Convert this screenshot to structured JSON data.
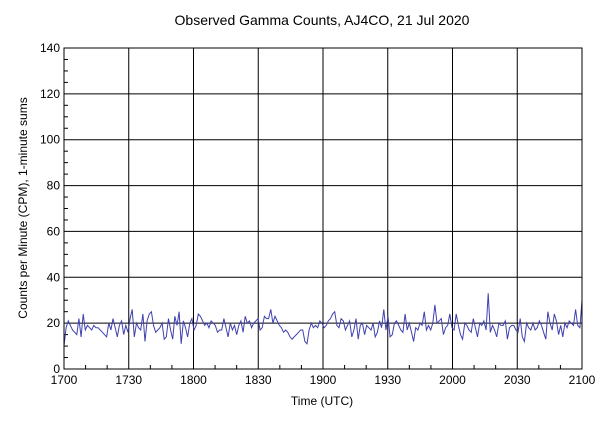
{
  "chart_data": {
    "type": "line",
    "title": "Observed Gamma Counts, AJ4CO, 21 Jul 2020",
    "xlabel": "Time (UTC)",
    "ylabel": "Counts per Minute (CPM), 1-minute sums",
    "xlim_minutes": [
      0,
      240
    ],
    "ylim": [
      0,
      140
    ],
    "x_ticks": [
      "1700",
      "1730",
      "1800",
      "1830",
      "1900",
      "1930",
      "2000",
      "2030",
      "2100"
    ],
    "y_ticks": [
      "0",
      "20",
      "40",
      "60",
      "80",
      "100",
      "120",
      "140"
    ],
    "grid": true,
    "line_color": "#4040b0",
    "series": [
      {
        "name": "CPM",
        "values": [
          10,
          18,
          21,
          19,
          17,
          16,
          15,
          22,
          14,
          24,
          17,
          19,
          18,
          17,
          19,
          18,
          18,
          17,
          16,
          15,
          14,
          20,
          17,
          22,
          18,
          14,
          19,
          21,
          15,
          19,
          16,
          22,
          26,
          14,
          20,
          18,
          17,
          24,
          12,
          21,
          24,
          25,
          19,
          16,
          17,
          18,
          20,
          13,
          14,
          22,
          17,
          13,
          23,
          19,
          25,
          11,
          21,
          18,
          14,
          20,
          22,
          17,
          19,
          24,
          23,
          21,
          19,
          20,
          18,
          21,
          20,
          19,
          16,
          17,
          17,
          22,
          18,
          14,
          20,
          17,
          19,
          15,
          19,
          21,
          16,
          23,
          20,
          21,
          18,
          20,
          21,
          22,
          17,
          18,
          23,
          22,
          22,
          26,
          20,
          23,
          21,
          19,
          18,
          16,
          17,
          16,
          14,
          13,
          14,
          15,
          16,
          17,
          17,
          12,
          11,
          17,
          20,
          18,
          19,
          18,
          21,
          20,
          18,
          19,
          21,
          22,
          24,
          25,
          19,
          18,
          22,
          21,
          17,
          19,
          21,
          14,
          17,
          22,
          13,
          19,
          20,
          15,
          19,
          18,
          17,
          20,
          14,
          16,
          21,
          18,
          26,
          17,
          23,
          14,
          15,
          20,
          21,
          19,
          17,
          16,
          24,
          17,
          20,
          16,
          12,
          18,
          17,
          20,
          19,
          25,
          17,
          19,
          17,
          20,
          28,
          20,
          21,
          22,
          15,
          18,
          19,
          24,
          18,
          17,
          24,
          19,
          15,
          13,
          20,
          19,
          17,
          16,
          22,
          18,
          14,
          20,
          19,
          21,
          17,
          33,
          16,
          19,
          17,
          14,
          20,
          19,
          19,
          21,
          13,
          18,
          19,
          19,
          17,
          16,
          22,
          14,
          12,
          20,
          18,
          17,
          20,
          17,
          18,
          21,
          19,
          16,
          13,
          25,
          20,
          17,
          24,
          21,
          15,
          19,
          14,
          20,
          18,
          21,
          20,
          19,
          26,
          19,
          18,
          30
        ]
      }
    ]
  }
}
